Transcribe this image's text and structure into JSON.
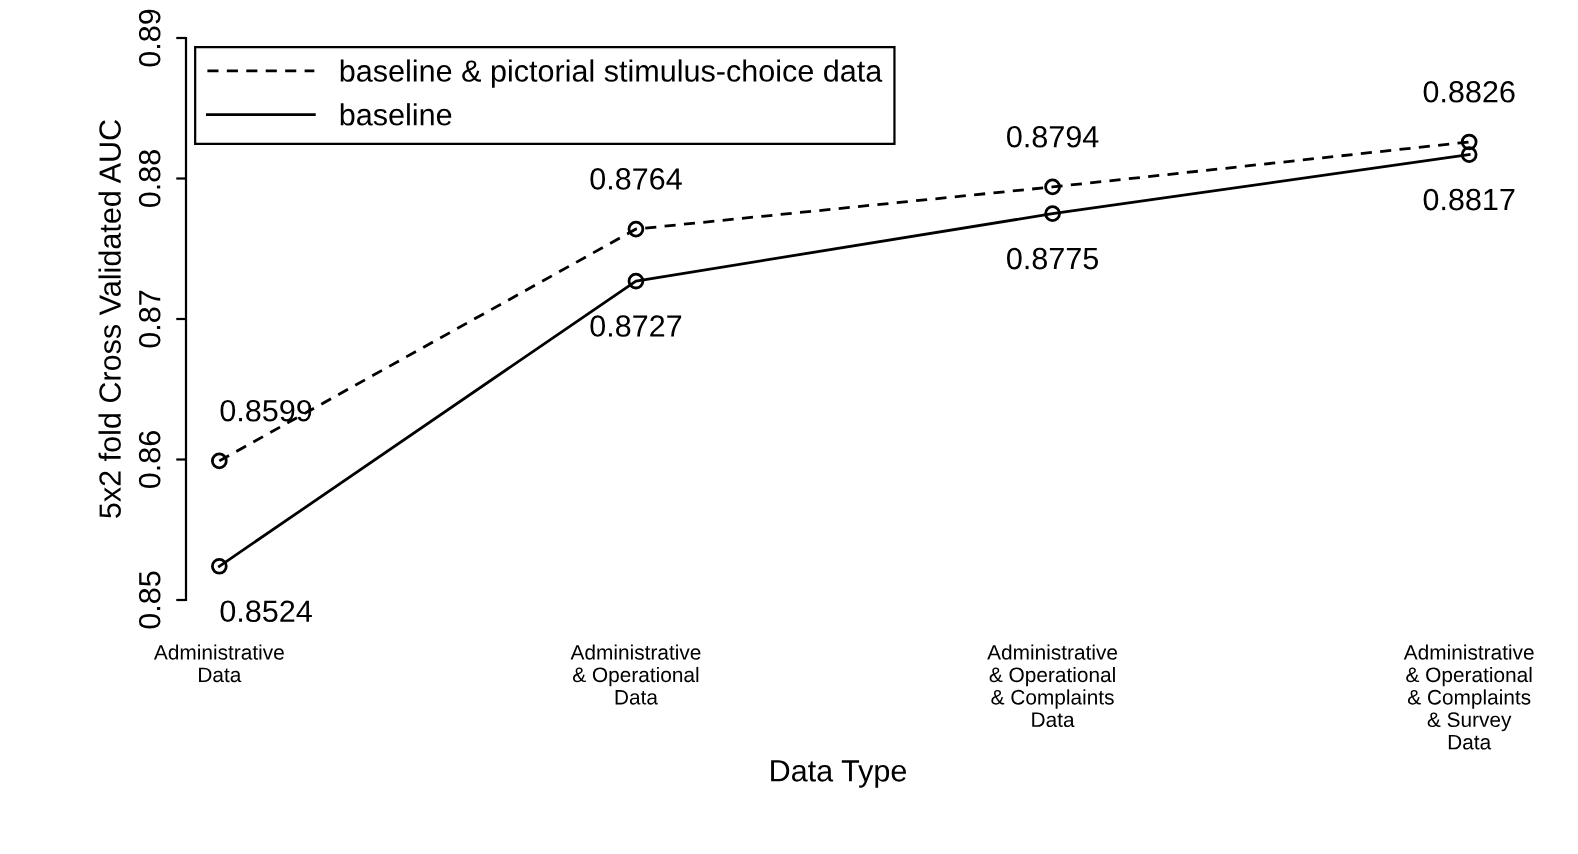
{
  "chart_data": {
    "type": "line",
    "xlabel": "Data Type",
    "ylabel": "5x2 fold Cross Validated AUC",
    "categories": [
      "Administrative\nData",
      "Administrative\n& Operational\nData",
      "Administrative\n& Operational\n& Complaints\nData",
      "Administrative\n& Operational\n& Complaints\n& Survey\nData"
    ],
    "series": [
      {
        "name": "baseline & pictorial stimulus-choice data",
        "color": "#000000",
        "line_style": "dashed",
        "values": [
          0.8599,
          0.8764,
          0.8794,
          0.8826
        ]
      },
      {
        "name": "baseline",
        "color": "#000000",
        "line_style": "solid",
        "values": [
          0.8524,
          0.8727,
          0.8775,
          0.8817
        ]
      }
    ],
    "ylim": [
      0.85,
      0.89
    ],
    "yticks": [
      0.85,
      0.86,
      0.87,
      0.88,
      0.89
    ],
    "marker": "circle",
    "data_labels": true,
    "legend": "top left",
    "grid": false
  }
}
